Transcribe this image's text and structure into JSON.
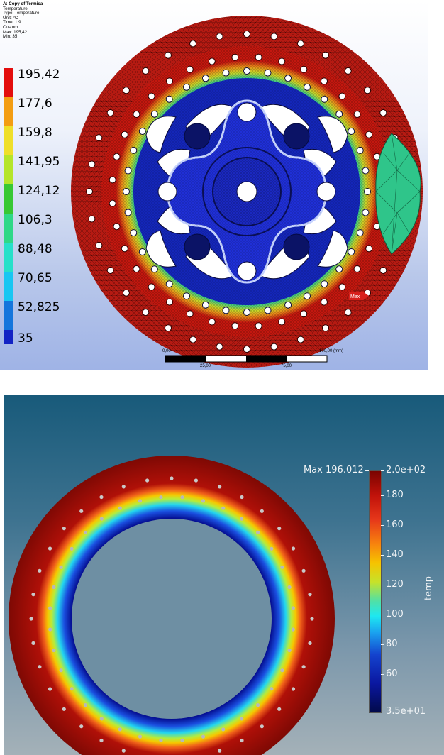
{
  "ansys_view": {
    "header": {
      "title": "A: Copy of Termica",
      "lines": [
        "Temperature",
        "Type: Temperature",
        "Unit: °C",
        "Time: 1,9",
        "Custom",
        "Max: 195,42",
        "Min: 35"
      ]
    },
    "legend": [
      {
        "label": "195,42",
        "color": "#e30d0d"
      },
      {
        "label": "177,6",
        "color": "#f39d13"
      },
      {
        "label": "159,8",
        "color": "#efdf2a"
      },
      {
        "label": "141,95",
        "color": "#b5e52a"
      },
      {
        "label": "124,12",
        "color": "#37c833"
      },
      {
        "label": "106,3",
        "color": "#2fd887"
      },
      {
        "label": "88,48",
        "color": "#27e0c9"
      },
      {
        "label": "70,65",
        "color": "#18c6f2"
      },
      {
        "label": "52,825",
        "color": "#1475dc"
      },
      {
        "label": "35",
        "color": "#1222c4"
      }
    ],
    "max_marker": "Max",
    "scale": {
      "top_labels": [
        "0,00",
        "100,00 (mm)"
      ],
      "bottom_labels": [
        "25,00",
        "75,00"
      ]
    }
  },
  "paraview_view": {
    "max_label": "Max 196.012",
    "colorbar_title": "temp",
    "ticks": [
      "2.0e+02",
      "180",
      "160",
      "140",
      "120",
      "100",
      "80",
      "60",
      "3.5e+01"
    ],
    "colormap": "rainbow"
  }
}
